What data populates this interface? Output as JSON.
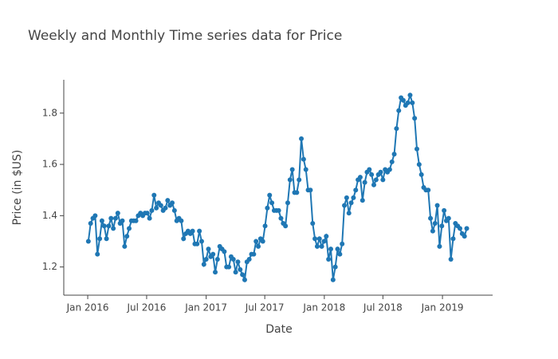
{
  "chart_data": {
    "type": "line",
    "title": "Weekly and Monthly Time series data for Price",
    "x_label": "Date",
    "y_label": "Price (in $US)",
    "color": "#1f77b4",
    "markers": true,
    "grid": false,
    "x": [
      "2016-01-03",
      "2016-01-10",
      "2016-01-17",
      "2016-01-24",
      "2016-01-31",
      "2016-02-07",
      "2016-02-14",
      "2016-02-21",
      "2016-02-28",
      "2016-03-06",
      "2016-03-13",
      "2016-03-20",
      "2016-03-27",
      "2016-04-03",
      "2016-04-10",
      "2016-04-17",
      "2016-04-24",
      "2016-05-01",
      "2016-05-08",
      "2016-05-15",
      "2016-05-22",
      "2016-05-29",
      "2016-06-05",
      "2016-06-12",
      "2016-06-19",
      "2016-06-26",
      "2016-07-03",
      "2016-07-10",
      "2016-07-17",
      "2016-07-24",
      "2016-07-31",
      "2016-08-07",
      "2016-08-14",
      "2016-08-21",
      "2016-08-28",
      "2016-09-04",
      "2016-09-11",
      "2016-09-18",
      "2016-09-25",
      "2016-10-02",
      "2016-10-09",
      "2016-10-16",
      "2016-10-23",
      "2016-10-30",
      "2016-11-06",
      "2016-11-13",
      "2016-11-20",
      "2016-11-27",
      "2016-12-04",
      "2016-12-11",
      "2016-12-18",
      "2016-12-25",
      "2017-01-01",
      "2017-01-08",
      "2017-01-15",
      "2017-01-22",
      "2017-01-29",
      "2017-02-05",
      "2017-02-12",
      "2017-02-19",
      "2017-02-26",
      "2017-03-05",
      "2017-03-12",
      "2017-03-19",
      "2017-03-26",
      "2017-04-02",
      "2017-04-09",
      "2017-04-16",
      "2017-04-23",
      "2017-04-30",
      "2017-05-07",
      "2017-05-14",
      "2017-05-21",
      "2017-05-28",
      "2017-06-04",
      "2017-06-11",
      "2017-06-18",
      "2017-06-25",
      "2017-07-02",
      "2017-07-09",
      "2017-07-16",
      "2017-07-23",
      "2017-07-30",
      "2017-08-06",
      "2017-08-13",
      "2017-08-20",
      "2017-08-27",
      "2017-09-03",
      "2017-09-10",
      "2017-09-17",
      "2017-09-24",
      "2017-10-01",
      "2017-10-08",
      "2017-10-15",
      "2017-10-22",
      "2017-10-29",
      "2017-11-05",
      "2017-11-12",
      "2017-11-19",
      "2017-11-26",
      "2017-12-03",
      "2017-12-10",
      "2017-12-17",
      "2017-12-24",
      "2017-12-31",
      "2018-01-07",
      "2018-01-14",
      "2018-01-21",
      "2018-01-28",
      "2018-02-04",
      "2018-02-11",
      "2018-02-18",
      "2018-02-25",
      "2018-03-04",
      "2018-03-11",
      "2018-03-18",
      "2018-03-25",
      "2018-04-01",
      "2018-04-08",
      "2018-04-15",
      "2018-04-22",
      "2018-04-29",
      "2018-05-06",
      "2018-05-13",
      "2018-05-20",
      "2018-05-27",
      "2018-06-03",
      "2018-06-10",
      "2018-06-17",
      "2018-06-24",
      "2018-07-01",
      "2018-07-08",
      "2018-07-15",
      "2018-07-22",
      "2018-07-29",
      "2018-08-05",
      "2018-08-12",
      "2018-08-19",
      "2018-08-26",
      "2018-09-02",
      "2018-09-09",
      "2018-09-16",
      "2018-09-23",
      "2018-09-30",
      "2018-10-07",
      "2018-10-14",
      "2018-10-21",
      "2018-10-28",
      "2018-11-04",
      "2018-11-11",
      "2018-11-18",
      "2018-11-25",
      "2018-12-02",
      "2018-12-09",
      "2018-12-16",
      "2018-12-23",
      "2018-12-30",
      "2019-01-06",
      "2019-01-13",
      "2019-01-20",
      "2019-01-27",
      "2019-02-03",
      "2019-02-10",
      "2019-02-17",
      "2019-02-24",
      "2019-03-03",
      "2019-03-10",
      "2019-03-17"
    ],
    "values": [
      1.3,
      1.37,
      1.39,
      1.4,
      1.25,
      1.31,
      1.38,
      1.36,
      1.31,
      1.36,
      1.39,
      1.35,
      1.39,
      1.41,
      1.37,
      1.38,
      1.28,
      1.32,
      1.35,
      1.38,
      1.38,
      1.38,
      1.4,
      1.41,
      1.4,
      1.41,
      1.41,
      1.39,
      1.42,
      1.48,
      1.43,
      1.45,
      1.44,
      1.42,
      1.43,
      1.46,
      1.44,
      1.45,
      1.42,
      1.38,
      1.39,
      1.38,
      1.31,
      1.33,
      1.34,
      1.33,
      1.34,
      1.29,
      1.29,
      1.34,
      1.3,
      1.21,
      1.23,
      1.27,
      1.24,
      1.25,
      1.18,
      1.23,
      1.28,
      1.27,
      1.26,
      1.2,
      1.2,
      1.24,
      1.23,
      1.18,
      1.22,
      1.19,
      1.17,
      1.15,
      1.22,
      1.23,
      1.25,
      1.25,
      1.3,
      1.28,
      1.31,
      1.3,
      1.36,
      1.43,
      1.48,
      1.45,
      1.42,
      1.42,
      1.42,
      1.39,
      1.37,
      1.36,
      1.45,
      1.54,
      1.58,
      1.49,
      1.49,
      1.54,
      1.7,
      1.62,
      1.58,
      1.5,
      1.5,
      1.37,
      1.31,
      1.28,
      1.31,
      1.28,
      1.3,
      1.32,
      1.23,
      1.27,
      1.15,
      1.2,
      1.27,
      1.25,
      1.29,
      1.44,
      1.47,
      1.41,
      1.45,
      1.47,
      1.5,
      1.54,
      1.55,
      1.46,
      1.53,
      1.57,
      1.58,
      1.56,
      1.52,
      1.54,
      1.56,
      1.57,
      1.54,
      1.58,
      1.57,
      1.58,
      1.61,
      1.64,
      1.74,
      1.81,
      1.86,
      1.85,
      1.83,
      1.84,
      1.87,
      1.84,
      1.78,
      1.66,
      1.6,
      1.56,
      1.51,
      1.5,
      1.5,
      1.39,
      1.34,
      1.37,
      1.44,
      1.28,
      1.36,
      1.42,
      1.38,
      1.39,
      1.23,
      1.31,
      1.37,
      1.36,
      1.35,
      1.33,
      1.32,
      1.35
    ],
    "xlim": [
      "2015-10-19",
      "2019-06-05"
    ],
    "xticks": [
      {
        "value": "2016-01-01",
        "label": "Jan 2016"
      },
      {
        "value": "2016-07-01",
        "label": "Jul 2016"
      },
      {
        "value": "2017-01-01",
        "label": "Jan 2017"
      },
      {
        "value": "2017-07-01",
        "label": "Jul 2017"
      },
      {
        "value": "2018-01-01",
        "label": "Jan 2018"
      },
      {
        "value": "2018-07-01",
        "label": "Jul 2018"
      },
      {
        "value": "2019-01-01",
        "label": "Jan 2019"
      }
    ],
    "ylim": [
      1.09,
      1.93
    ],
    "yticks": [
      1.2,
      1.4,
      1.6,
      1.8
    ]
  }
}
